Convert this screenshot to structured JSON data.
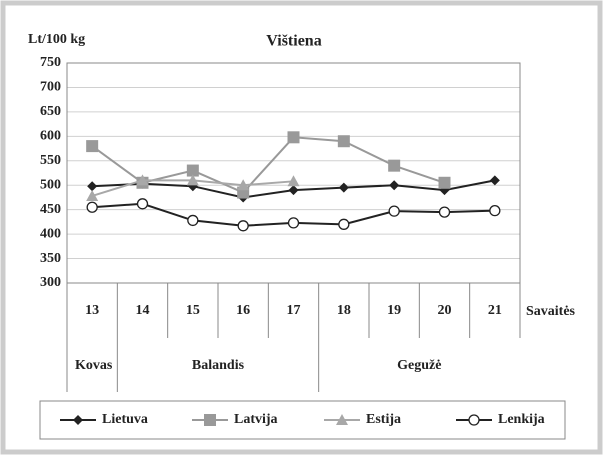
{
  "chart_data": {
    "type": "line",
    "title": "Vištiena",
    "y_label": "Lt/100 kg",
    "x_label": "Savaitės",
    "categories": [
      "13",
      "14",
      "15",
      "16",
      "17",
      "18",
      "19",
      "20",
      "21"
    ],
    "month_labels": [
      "Kovas",
      "Balandis",
      "Gegužė"
    ],
    "month_spans": [
      1,
      4,
      4
    ],
    "series": [
      {
        "name": "Lietuva",
        "color": "#222222",
        "marker": "diamond",
        "values": [
          498,
          503,
          498,
          475,
          490,
          495,
          500,
          490,
          510
        ]
      },
      {
        "name": "Latvija",
        "color": "#999999",
        "marker": "square",
        "values": [
          580,
          505,
          530,
          485,
          598,
          590,
          540,
          505,
          null
        ]
      },
      {
        "name": "Estija",
        "color": "#a8a8a8",
        "marker": "triangle",
        "values": [
          478,
          510,
          510,
          500,
          508,
          null,
          null,
          null,
          null
        ]
      },
      {
        "name": "Lenkija",
        "color": "#222222",
        "marker": "circle",
        "values": [
          455,
          462,
          428,
          417,
          423,
          420,
          447,
          445,
          448
        ]
      }
    ],
    "ylim": [
      300,
      750
    ],
    "yticks": [
      300,
      350,
      400,
      450,
      500,
      550,
      600,
      650,
      700,
      750
    ],
    "grid": true
  }
}
